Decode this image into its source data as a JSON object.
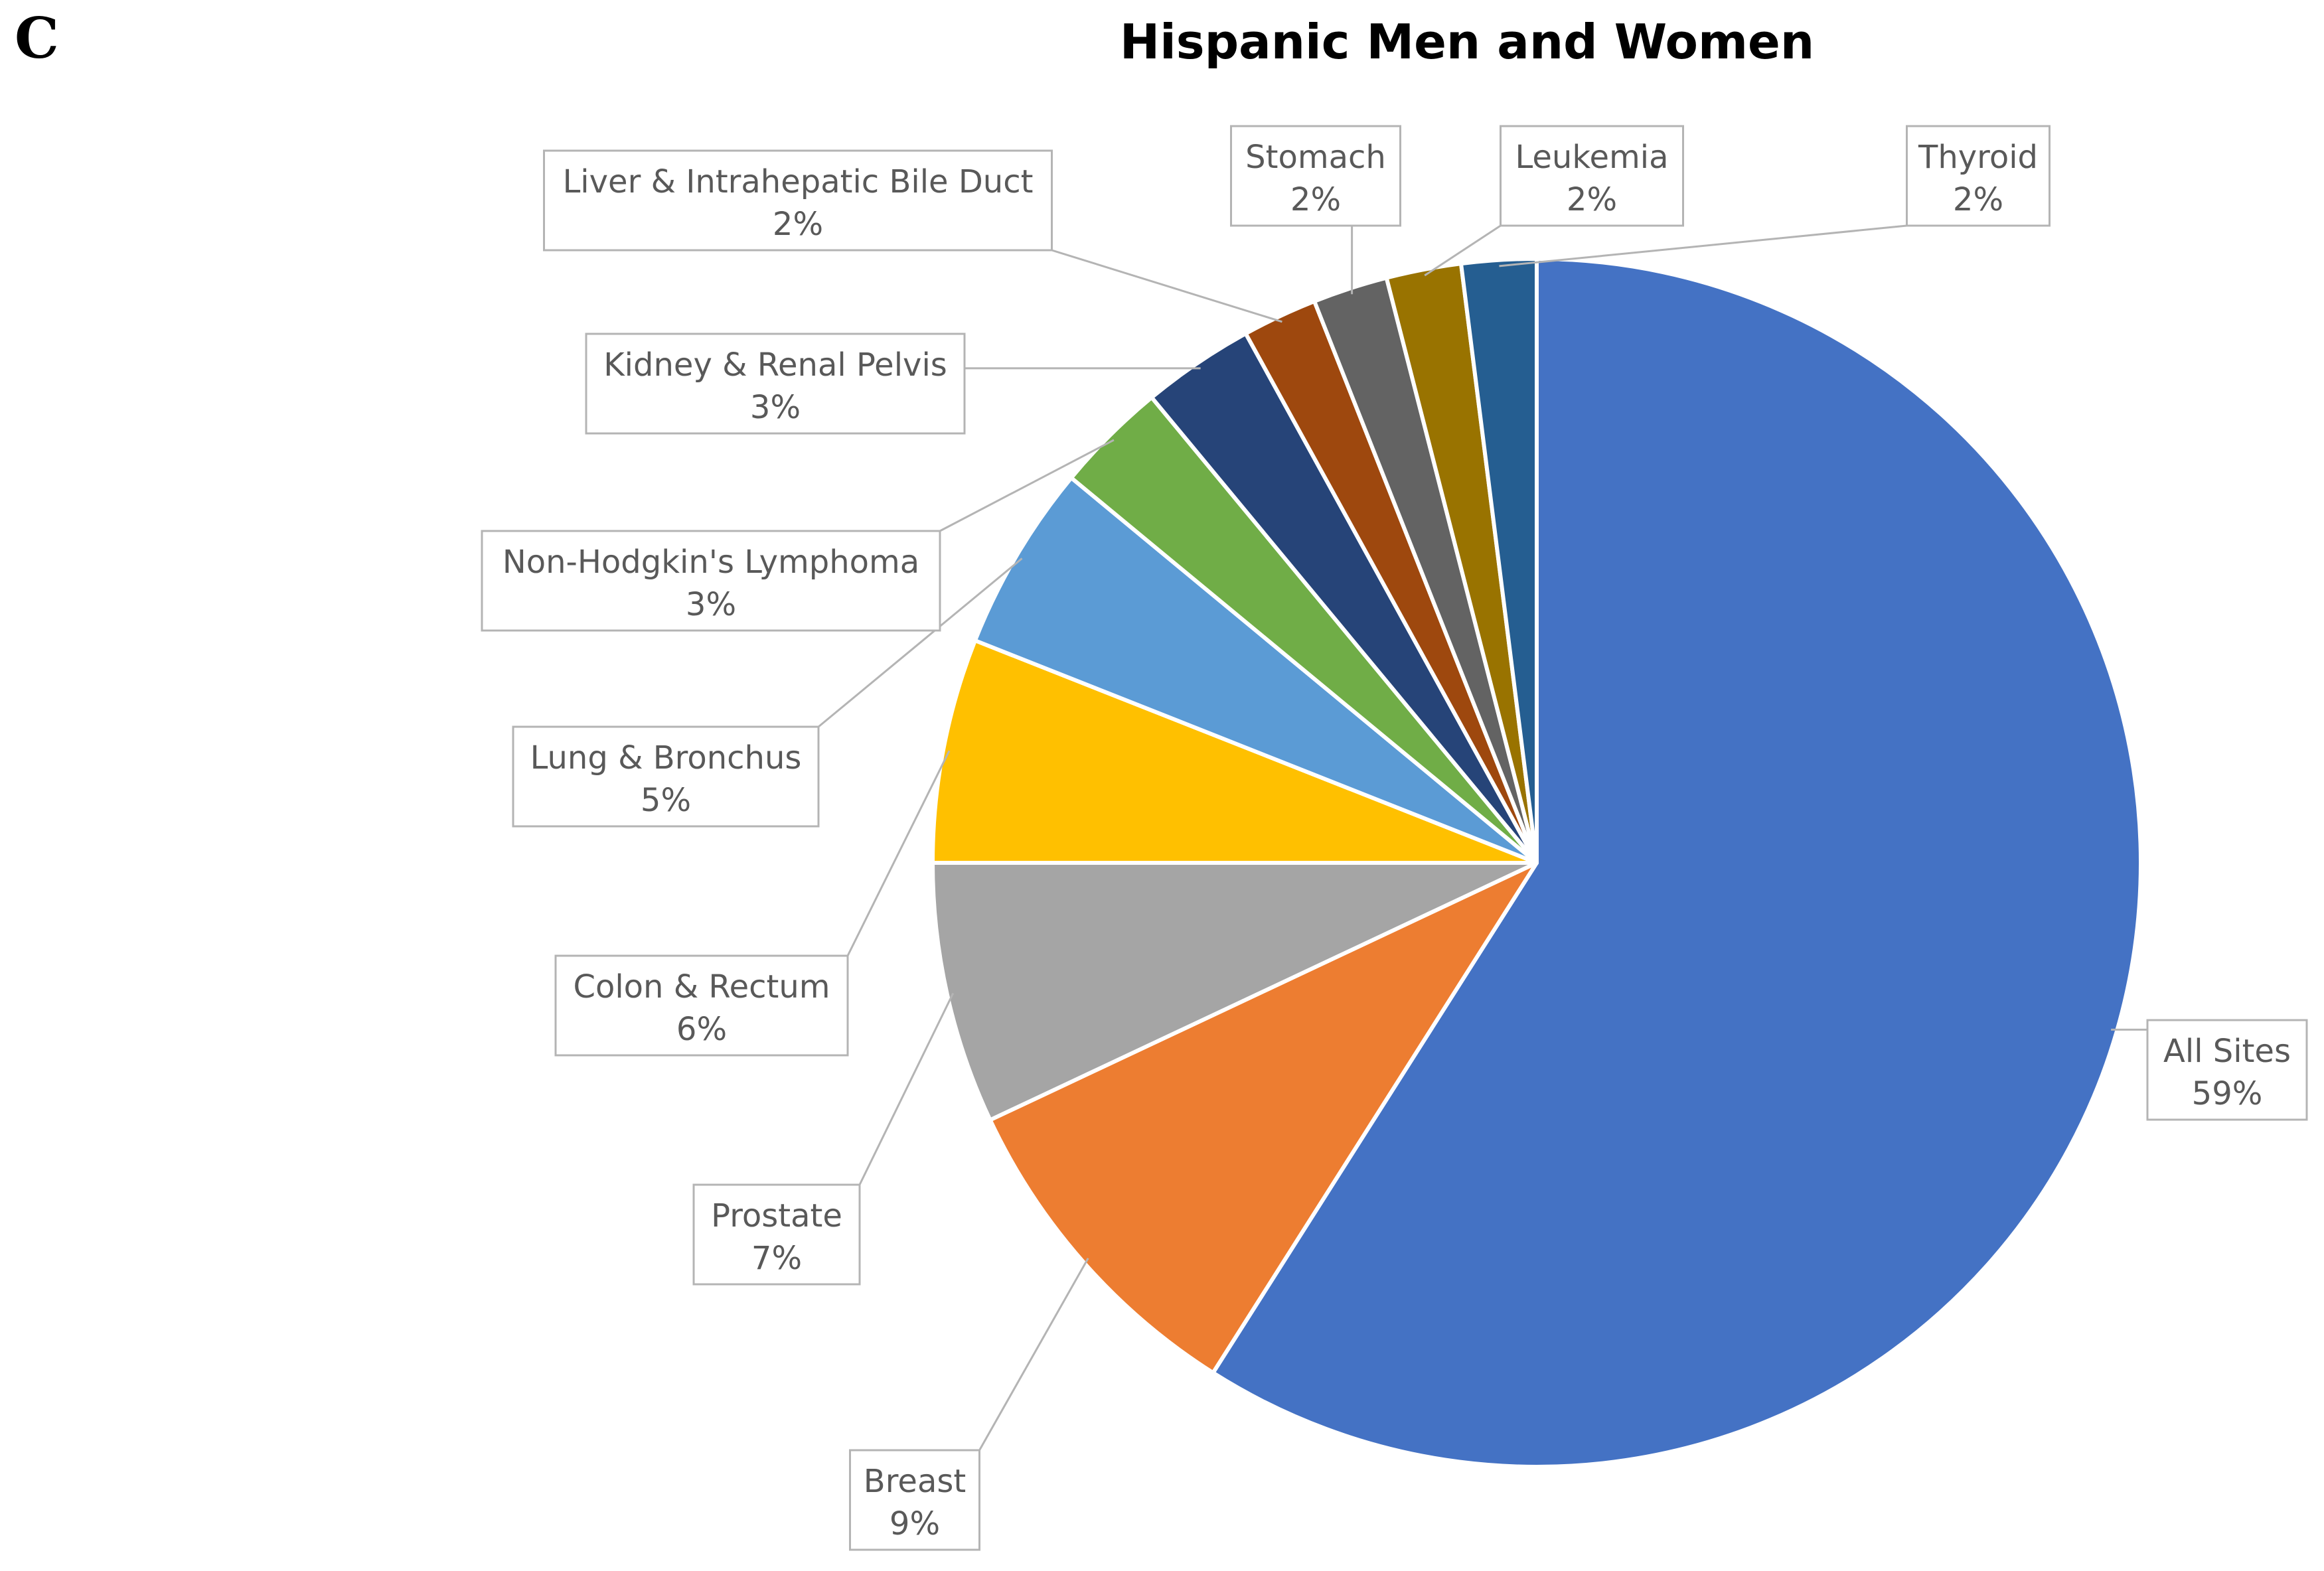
{
  "panel_label": "C",
  "chart_data": {
    "type": "pie",
    "title": "Hispanic Men and Women",
    "slices": [
      {
        "label": "All Sites",
        "value": 59,
        "display": "59%",
        "color": "#4472C4"
      },
      {
        "label": "Breast",
        "value": 9,
        "display": "9%",
        "color": "#ED7D31"
      },
      {
        "label": "Prostate",
        "value": 7,
        "display": "7%",
        "color": "#A5A5A5"
      },
      {
        "label": "Colon & Rectum",
        "value": 6,
        "display": "6%",
        "color": "#FFC000"
      },
      {
        "label": "Lung & Bronchus",
        "value": 5,
        "display": "5%",
        "color": "#5B9BD5"
      },
      {
        "label": "Non-Hodgkin's Lymphoma",
        "value": 3,
        "display": "3%",
        "color": "#70AD47"
      },
      {
        "label": "Kidney & Renal Pelvis",
        "value": 3,
        "display": "3%",
        "color": "#264478"
      },
      {
        "label": "Liver & Intrahepatic Bile Duct",
        "value": 2,
        "display": "2%",
        "color": "#9E480E"
      },
      {
        "label": "Stomach",
        "value": 2,
        "display": "2%",
        "color": "#636363"
      },
      {
        "label": "Leukemia",
        "value": 2,
        "display": "2%",
        "color": "#997300"
      },
      {
        "label": "Thyroid",
        "value": 2,
        "display": "2%",
        "color": "#255E91"
      }
    ],
    "legend": "none",
    "data_labels": "callout-boxes"
  }
}
